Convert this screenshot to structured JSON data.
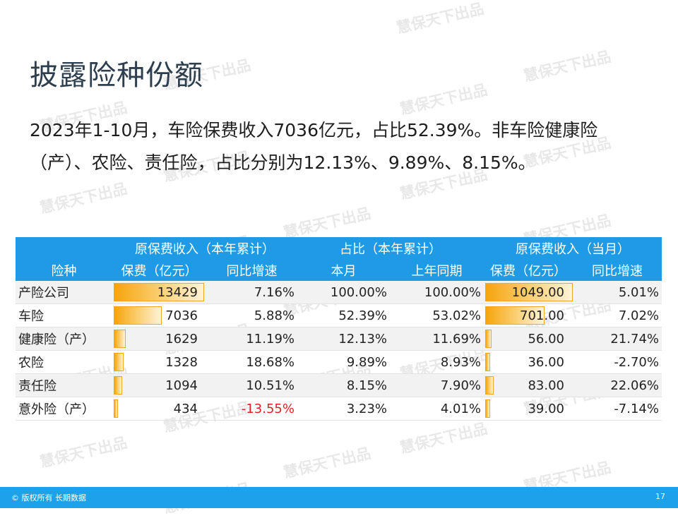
{
  "slide": {
    "title": "披露险种份额",
    "summary_line1": "2023年1-10月，车险保费收入7036亿元，占比52.39%。非车险健康险",
    "summary_line2": "（产）、农险、责任险，占比分别为12.13%、9.89%、8.15%。"
  },
  "table": {
    "group_headers": {
      "cumulative": "原保费收入（本年累计）",
      "share": "占比（本年累计）",
      "monthly": "原保费收入（当月）"
    },
    "sub_headers": {
      "name": "险种",
      "premium": "保费（亿元）",
      "yoy": "同比增速",
      "current": "本月",
      "last_year": "上年同期",
      "m_premium": "保费（亿元）",
      "m_yoy": "同比增速"
    },
    "rows": [
      {
        "name": "产险公司",
        "premium": "13429",
        "premium_num": 13429,
        "yoy": "7.16%",
        "current": "100.00%",
        "last_year": "100.00%",
        "m_premium": "1049.00",
        "m_premium_num": 1049.0,
        "m_yoy": "5.01%"
      },
      {
        "name": "车险",
        "premium": "7036",
        "premium_num": 7036,
        "yoy": "5.88%",
        "current": "52.39%",
        "last_year": "53.02%",
        "m_premium": "701.00",
        "m_premium_num": 701.0,
        "m_yoy": "7.02%"
      },
      {
        "name": "健康险（产）",
        "premium": "1629",
        "premium_num": 1629,
        "yoy": "11.19%",
        "current": "12.13%",
        "last_year": "11.69%",
        "m_premium": "56.00",
        "m_premium_num": 56.0,
        "m_yoy": "21.74%"
      },
      {
        "name": "农险",
        "premium": "1328",
        "premium_num": 1328,
        "yoy": "18.68%",
        "current": "9.89%",
        "last_year": "8.93%",
        "m_premium": "36.00",
        "m_premium_num": 36.0,
        "m_yoy": "-2.70%"
      },
      {
        "name": "责任险",
        "premium": "1094",
        "premium_num": 1094,
        "yoy": "10.51%",
        "current": "8.15%",
        "last_year": "7.90%",
        "m_premium": "83.00",
        "m_premium_num": 83.0,
        "m_yoy": "22.06%"
      },
      {
        "name": "意外险（产）",
        "premium": "434",
        "premium_num": 434,
        "yoy": "-13.55%",
        "yoy_negative": true,
        "current": "3.23%",
        "last_year": "4.01%",
        "m_premium": "39.00",
        "m_premium_num": 39.0,
        "m_yoy": "-7.14%"
      }
    ]
  },
  "colors": {
    "header_bg": "#1f9be6",
    "bar": "#f5a40c",
    "negative": "#e21f24",
    "footer_bg": "#1da1e8",
    "title": "#2d3f4f"
  },
  "watermark": "慧保天下出品",
  "footer": {
    "copyright": "© 版权所有 长期数据",
    "page": "17"
  }
}
